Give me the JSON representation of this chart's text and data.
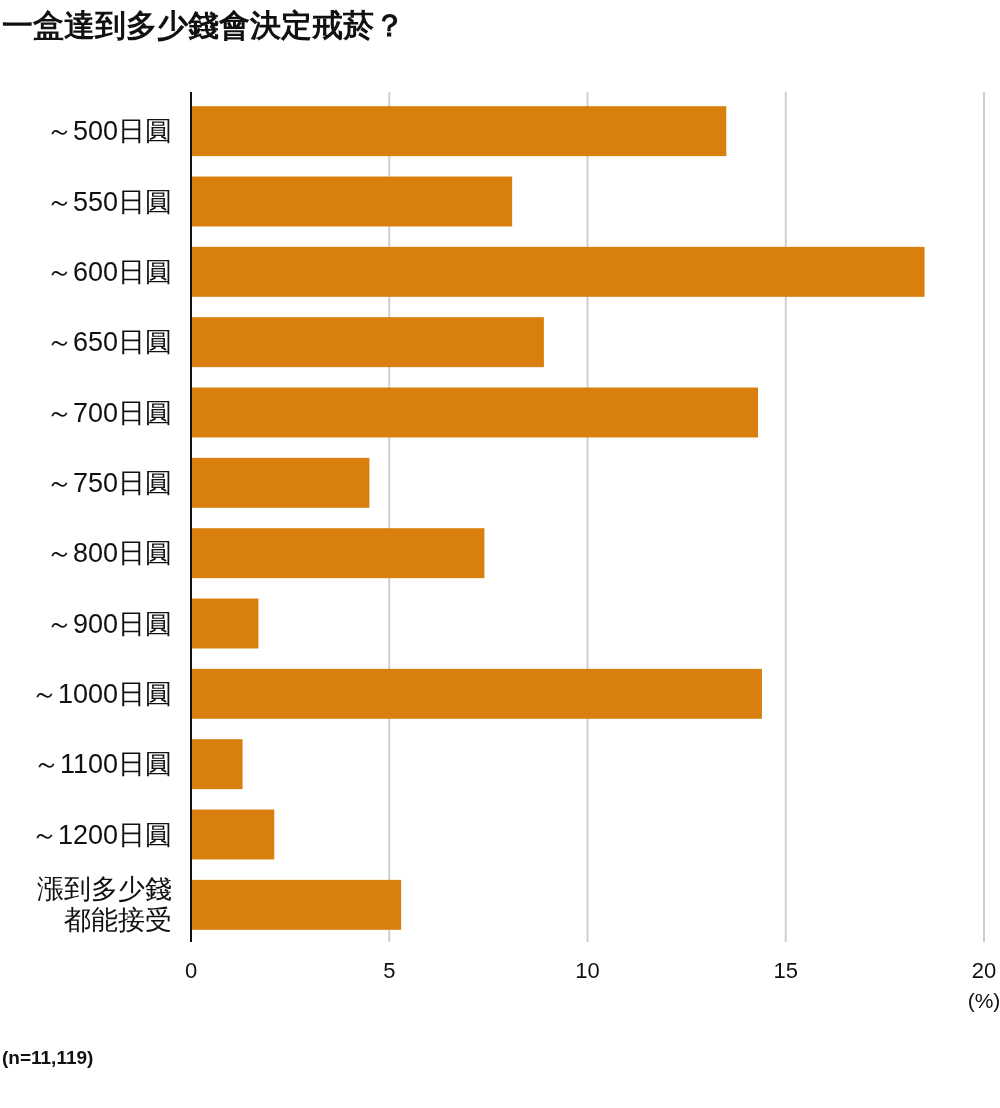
{
  "chart_data": {
    "type": "bar",
    "orientation": "horizontal",
    "title": "一盒達到多少錢會決定戒菸？",
    "xlabel": "(%)",
    "categories": [
      "～500日圓",
      "～550日圓",
      "～600日圓",
      "～650日圓",
      "～700日圓",
      "～750日圓",
      "～800日圓",
      "～900日圓",
      "～1000日圓",
      "～1100日圓",
      "～1200日圓",
      "漲到多少錢都能接受"
    ],
    "values": [
      13.5,
      8.1,
      18.5,
      8.9,
      14.3,
      4.5,
      7.4,
      1.7,
      14.4,
      1.3,
      2.1,
      5.3
    ],
    "color": "#d97f0e",
    "xlim": [
      0,
      20
    ],
    "xticks": [
      0,
      5,
      10,
      15,
      20
    ],
    "grid": "x",
    "annotations": [
      "(n=11,119)"
    ]
  }
}
